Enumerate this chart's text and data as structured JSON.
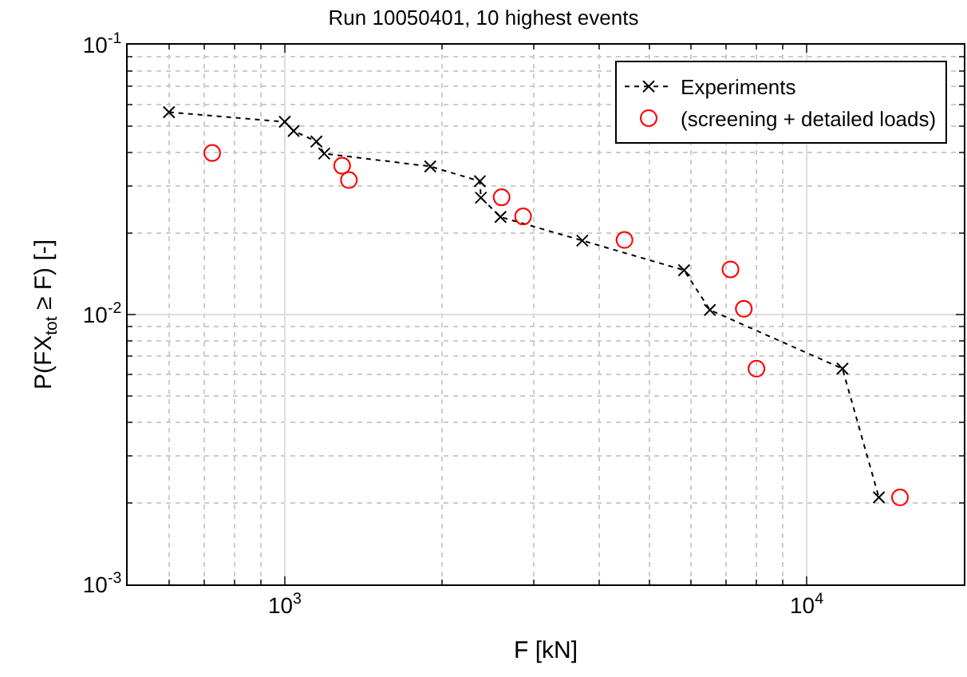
{
  "chart_data": {
    "type": "line",
    "title": "Run 10050401, 10 highest events",
    "xlabel": "F [kN]",
    "ylabel": "P(FX$_{tot}$ ≥ F) [-]",
    "log": "xy",
    "grid": true,
    "legend": "top right",
    "xlim": [
      500,
      20000
    ],
    "ylim": [
      0.001,
      0.1
    ],
    "xticks": [
      {
        "value": 500,
        "label": null
      },
      {
        "value": 600,
        "label": null
      },
      {
        "value": 700,
        "label": null
      },
      {
        "value": 800,
        "label": null
      },
      {
        "value": 900,
        "label": null
      },
      {
        "value": 1000,
        "label": "10$^{3}$"
      },
      {
        "value": 2000,
        "label": null
      },
      {
        "value": 3000,
        "label": null
      },
      {
        "value": 4000,
        "label": null
      },
      {
        "value": 5000,
        "label": null
      },
      {
        "value": 6000,
        "label": null
      },
      {
        "value": 7000,
        "label": null
      },
      {
        "value": 8000,
        "label": null
      },
      {
        "value": 9000,
        "label": null
      },
      {
        "value": 10000,
        "label": "10$^{4}$"
      },
      {
        "value": 20000,
        "label": null
      }
    ],
    "yticks": [
      {
        "value": 0.001,
        "label": "10$^{-3}$"
      },
      {
        "value": 0.002,
        "label": null
      },
      {
        "value": 0.003,
        "label": null
      },
      {
        "value": 0.004,
        "label": null
      },
      {
        "value": 0.005,
        "label": null
      },
      {
        "value": 0.006,
        "label": null
      },
      {
        "value": 0.007,
        "label": null
      },
      {
        "value": 0.008,
        "label": null
      },
      {
        "value": 0.009,
        "label": null
      },
      {
        "value": 0.01,
        "label": "10$^{-2}$"
      },
      {
        "value": 0.02,
        "label": null
      },
      {
        "value": 0.03,
        "label": null
      },
      {
        "value": 0.04,
        "label": null
      },
      {
        "value": 0.05,
        "label": null
      },
      {
        "value": 0.06,
        "label": null
      },
      {
        "value": 0.07,
        "label": null
      },
      {
        "value": 0.08,
        "label": null
      },
      {
        "value": 0.09,
        "label": null
      },
      {
        "value": 0.1,
        "label": "10$^{-1}$"
      }
    ],
    "series": [
      {
        "name": "Experiments",
        "color": "#000000",
        "marker": "cross",
        "line_style": "dotted",
        "x": [
          600,
          1000,
          1040,
          1150,
          1190,
          1900,
          2365,
          2376,
          2590,
          3716,
          5822,
          6525,
          11710,
          13750
        ],
        "values": [
          0.0562,
          0.0518,
          0.0479,
          0.0438,
          0.0395,
          0.0354,
          0.0312,
          0.0271,
          0.023,
          0.0188,
          0.0146,
          0.0104,
          0.0063,
          0.0021
        ]
      },
      {
        "name": "(screening + detailed loads)",
        "type": "scatter",
        "color": "#ff0000",
        "marker": "circle",
        "x": [
          726,
          1288,
          1327,
          2603,
          2862,
          4476,
          7145,
          7578,
          8013,
          15090
        ],
        "values": [
          0.0397,
          0.0356,
          0.0315,
          0.0272,
          0.0231,
          0.0189,
          0.0147,
          0.0105,
          0.0063,
          0.0021
        ]
      }
    ]
  }
}
